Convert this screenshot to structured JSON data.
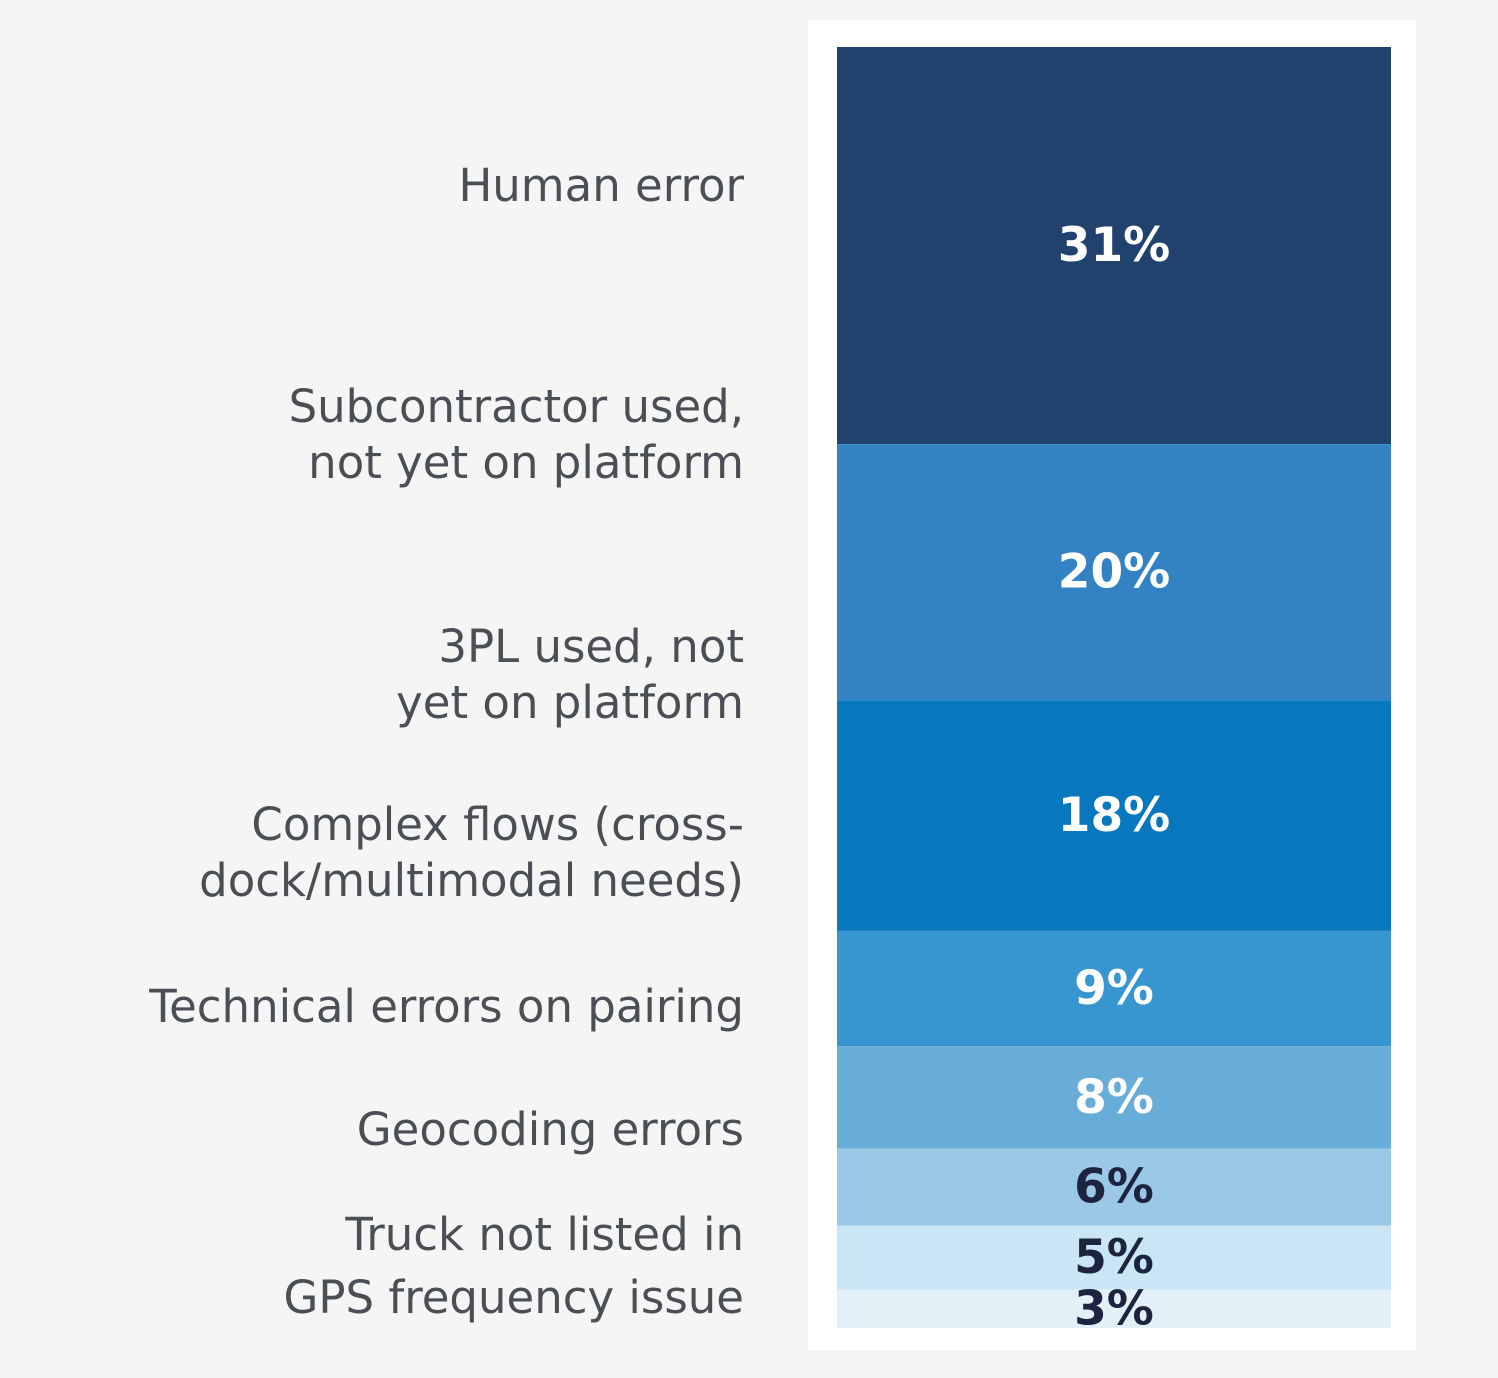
{
  "chart_data": {
    "type": "bar",
    "stacked": true,
    "orientation": "vertical-single-stack",
    "categories": [
      "Human error",
      "Subcontractor used,\nnot yet on platform",
      "3PL used, not\nyet on platform",
      "Complex flows (cross-\ndock/multimodal needs)",
      "Technical errors on pairing",
      "Geocoding errors",
      "Truck not listed in",
      "GPS frequency issue"
    ],
    "values": [
      31,
      20,
      18,
      9,
      8,
      6,
      5,
      3
    ],
    "value_labels": [
      "31%",
      "20%",
      "18%",
      "9%",
      "8%",
      "6%",
      "5%",
      "3%"
    ],
    "colors": [
      "#20426c",
      "#3383c4",
      "#0878be",
      "#3795cf",
      "#68acd8",
      "#9cc8e7",
      "#cae5f4",
      "#e3f0f7"
    ],
    "label_colors": [
      "#ffffff",
      "#ffffff",
      "#ffffff",
      "#ffffff",
      "#ffffff",
      "#1c2440",
      "#1c2440",
      "#1c2440"
    ],
    "legend": "none",
    "grid": false
  }
}
